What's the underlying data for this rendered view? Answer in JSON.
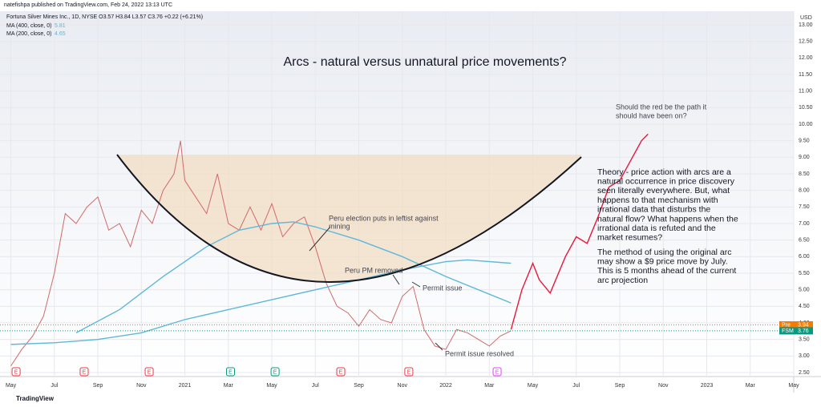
{
  "header": {
    "publisher": "natefishpa published on TradingView.com, Feb 24, 2022 13:13 UTC",
    "symbol": "Fortuna Silver Mines Inc., 1D, NYSE  O3.57 H3.84 L3.57 C3.76 +0.22 (+6.21%)",
    "ma": [
      {
        "label": "MA (400, close, 0)",
        "value": "5.81"
      },
      {
        "label": "MA (200, close, 0)",
        "value": "4.65"
      }
    ],
    "currency": "USD"
  },
  "chart_data": {
    "type": "line",
    "title": "Arcs - natural versus unnatural price movements?",
    "xlim": [
      -0.5,
      36
    ],
    "ylim": [
      2.5,
      13
    ],
    "xticks": [
      {
        "value": 0,
        "label": "May"
      },
      {
        "value": 2,
        "label": "Jul"
      },
      {
        "value": 4,
        "label": "Sep"
      },
      {
        "value": 6,
        "label": "Nov"
      },
      {
        "value": 8,
        "label": "2021"
      },
      {
        "value": 10,
        "label": "Mar"
      },
      {
        "value": 12,
        "label": "May"
      },
      {
        "value": 14,
        "label": "Jul"
      },
      {
        "value": 16,
        "label": "Sep"
      },
      {
        "value": 18,
        "label": "Nov"
      },
      {
        "value": 20,
        "label": "2022"
      },
      {
        "value": 22,
        "label": "Mar"
      },
      {
        "value": 24,
        "label": "May"
      },
      {
        "value": 26,
        "label": "Jul"
      },
      {
        "value": 28,
        "label": "Sep"
      },
      {
        "value": 30,
        "label": "Nov"
      },
      {
        "value": 32,
        "label": "2023"
      },
      {
        "value": 34,
        "label": "Mar"
      },
      {
        "value": 36,
        "label": "May"
      }
    ],
    "yticks": [
      {
        "value": 2.5,
        "label": "2.50"
      },
      {
        "value": 3,
        "label": "3.00"
      },
      {
        "value": 3.5,
        "label": "3.50"
      },
      {
        "value": 4,
        "label": "4.00"
      },
      {
        "value": 4.5,
        "label": "4.50"
      },
      {
        "value": 5,
        "label": "5.00"
      },
      {
        "value": 5.5,
        "label": "5.50"
      },
      {
        "value": 6,
        "label": "6.00"
      },
      {
        "value": 6.5,
        "label": "6.50"
      },
      {
        "value": 7,
        "label": "7.00"
      },
      {
        "value": 7.5,
        "label": "7.50"
      },
      {
        "value": 8,
        "label": "8.00"
      },
      {
        "value": 8.5,
        "label": "8.50"
      },
      {
        "value": 9,
        "label": "9.00"
      },
      {
        "value": 9.5,
        "label": "9.50"
      },
      {
        "value": 10,
        "label": "10.00"
      },
      {
        "value": 10.5,
        "label": "10.50"
      },
      {
        "value": 11,
        "label": "11.00"
      },
      {
        "value": 11.5,
        "label": "11.50"
      },
      {
        "value": 12,
        "label": "12.00"
      },
      {
        "value": 12.5,
        "label": "12.50"
      },
      {
        "value": 13,
        "label": "13.00"
      }
    ],
    "series": [
      {
        "name": "FSM",
        "color": "#d06a6a",
        "x": [
          0,
          0.5,
          1,
          1.5,
          2,
          2.5,
          3,
          3.5,
          4,
          4.5,
          5,
          5.5,
          6,
          6.5,
          7,
          7.5,
          7.8,
          8,
          8.5,
          9,
          9.5,
          10,
          10.5,
          11,
          11.5,
          12,
          12.5,
          13,
          13.5,
          14,
          14.5,
          15,
          15.5,
          16,
          16.5,
          17,
          17.5,
          18,
          18.5,
          19,
          19.5,
          20,
          20.5,
          21,
          21.5,
          22,
          22.5,
          23
        ],
        "values": [
          2.7,
          3.2,
          3.6,
          4.2,
          5.5,
          7.3,
          7.0,
          7.5,
          7.8,
          6.8,
          7.0,
          6.3,
          7.4,
          7.0,
          8.0,
          8.5,
          9.5,
          8.3,
          7.8,
          7.3,
          8.5,
          7.0,
          6.8,
          7.5,
          6.8,
          7.6,
          6.6,
          7.0,
          7.2,
          6.3,
          5.2,
          4.5,
          4.3,
          3.9,
          4.4,
          4.1,
          4.0,
          4.8,
          5.1,
          3.8,
          3.3,
          3.2,
          3.8,
          3.7,
          3.5,
          3.3,
          3.6,
          3.76
        ]
      },
      {
        "color": "#5fb8d8",
        "x": [
          0,
          2,
          4,
          6,
          8,
          10,
          12,
          14,
          16,
          18,
          20,
          21,
          23
        ],
        "values": [
          3.35,
          3.4,
          3.5,
          3.7,
          4.1,
          4.4,
          4.7,
          5.0,
          5.3,
          5.6,
          5.85,
          5.9,
          5.8
        ]
      },
      {
        "color": "#5fb8d8",
        "x": [
          3,
          5,
          7,
          9,
          10.5,
          12,
          13,
          14,
          16,
          18,
          20,
          21.5,
          23
        ],
        "values": [
          3.7,
          4.4,
          5.4,
          6.3,
          6.8,
          7.0,
          7.05,
          6.9,
          6.5,
          6.0,
          5.4,
          5.0,
          4.6
        ]
      },
      {
        "color": "#e8173a",
        "x": [
          23,
          23.5,
          24,
          24.3,
          24.8,
          25.5,
          26,
          26.5,
          27,
          27.5,
          28,
          28.5,
          29,
          29.3
        ],
        "values": [
          3.8,
          5.0,
          5.8,
          5.3,
          4.9,
          6.0,
          6.6,
          6.4,
          7.2,
          8.1,
          8.3,
          8.9,
          9.5,
          9.7
        ]
      }
    ],
    "price_labels": [
      {
        "name": "Pre",
        "value": 3.94,
        "color": "#f57c00"
      },
      {
        "name": "FSM",
        "value": 3.76,
        "color": "#089981"
      }
    ],
    "events": [
      {
        "label": "E",
        "x": 0.24,
        "color": "#f23645"
      },
      {
        "label": "E",
        "x": 3.37,
        "color": "#f23645"
      },
      {
        "label": "E",
        "x": 6.36,
        "color": "#f23645"
      },
      {
        "label": "E",
        "x": 10.1,
        "color": "#089981"
      },
      {
        "label": "E",
        "x": 12.15,
        "color": "#089981"
      },
      {
        "label": "E",
        "x": 15.17,
        "color": "#f23645"
      },
      {
        "label": "E",
        "x": 18.3,
        "color": "#f23645"
      },
      {
        "label": "E",
        "x": 22.36,
        "color": "#e040fb"
      }
    ],
    "annotations": {
      "election": [
        "Peru election puts in leftist against",
        "mining"
      ],
      "pm": "Peru PM removed",
      "permit": "Permit issue",
      "resolved": "Permit issue resolved",
      "question": [
        "Should the red be the path it",
        "should have been on?"
      ],
      "theory": [
        "Theory - price action with arcs are a",
        "natural occurrence in price discovery",
        "seen literally everywhere.  But, what",
        "happens to that mechanism with",
        "irrational data that disturbs the",
        "natural flow? What happens when the",
        "irrational data is refuted and the",
        "market resumes?"
      ],
      "method": [
        "The method of using the original arc",
        "may show a $9 price move by July.",
        "This is 5 months ahead of the current",
        "arc projection"
      ]
    }
  },
  "footer": "TradingView"
}
